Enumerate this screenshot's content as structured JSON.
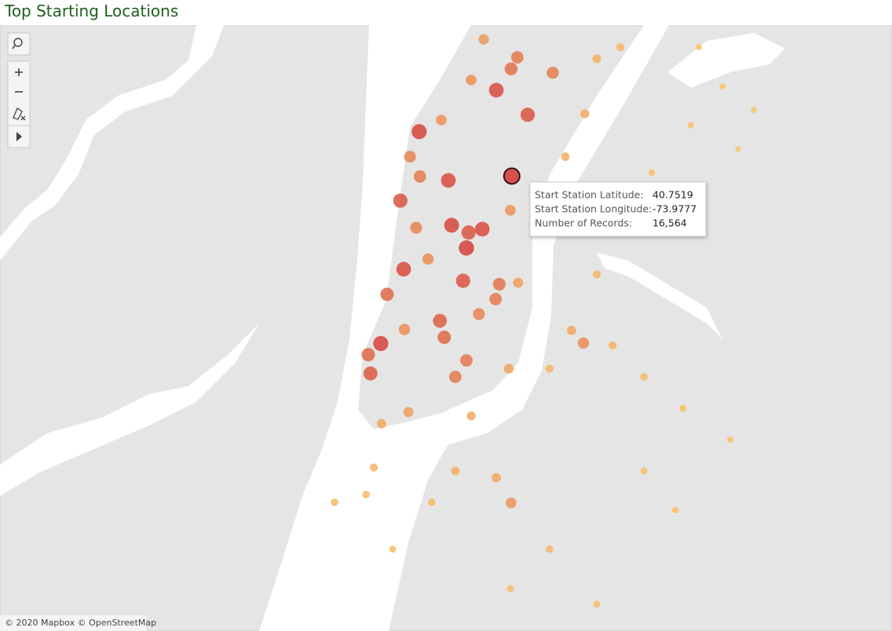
{
  "chart_data": {
    "type": "map",
    "title": "Top Starting Locations",
    "lat": [
      40.7519,
      40.7611,
      40.7697,
      40.7741,
      40.7765,
      40.7646,
      40.751,
      40.7468,
      40.7417,
      40.7402,
      40.7409,
      40.737,
      40.7326,
      40.7302,
      40.7274,
      40.7219,
      40.7185,
      40.7172,
      40.7149,
      40.711,
      40.7137,
      40.7295,
      40.7264,
      40.7518,
      40.7559,
      40.7733,
      40.7635,
      40.7718,
      40.7802,
      40.7412,
      40.7347,
      40.7201,
      40.703,
      40.7006,
      40.7448,
      40.7298,
      40.712,
      40.7559,
      40.7648,
      40.7762,
      40.7786,
      40.7173,
      40.7199,
      40.7315,
      40.7168,
      40.7103,
      40.7038,
      40.6973,
      40.7022,
      40.6842,
      40.6894,
      40.6908,
      40.6746,
      40.6632,
      40.6908,
      40.6746,
      40.6843,
      40.6843,
      40.6859,
      40.6915,
      40.7624,
      40.7705,
      40.7656,
      40.7526,
      40.7575,
      40.7786,
      40.712,
      40.6827,
      40.6664,
      40.7103,
      40.7233
    ],
    "lon": [
      -73.9777,
      -74.0028,
      -73.9819,
      -73.9779,
      -73.9762,
      -73.9734,
      -73.9949,
      -74.0079,
      -73.994,
      -73.9894,
      -73.9857,
      -73.99,
      -74.007,
      -73.9909,
      -74.0115,
      -73.9972,
      -73.996,
      -74.0132,
      -74.0166,
      -74.016,
      -73.99,
      -73.9811,
      -73.9821,
      -74.0026,
      -74.0053,
      -73.9666,
      -73.9968,
      -73.9887,
      -73.9853,
      -74.0036,
      -74.0004,
      -74.0068,
      -74.0057,
      -74.013,
      -73.9781,
      -73.976,
      -73.9785,
      -73.9632,
      -73.9579,
      -73.9547,
      -73.9483,
      -73.9583,
      -73.9615,
      -73.9547,
      -73.9504,
      -73.9419,
      -73.9313,
      -73.9185,
      -73.9887,
      -73.9779,
      -73.9819,
      -73.993,
      -73.9675,
      -73.9547,
      -73.9419,
      -74.01,
      -73.9994,
      -74.0257,
      -74.0172,
      -74.0151,
      -73.9292,
      -73.9206,
      -73.9121,
      -73.9398,
      -73.9164,
      -73.927,
      -73.9675,
      -73.9334,
      -73.9781,
      -73.993,
      -73.9866
    ],
    "values": [
      16564,
      15000,
      14000,
      10000,
      9000,
      13000,
      14000,
      13000,
      14500,
      13000,
      14000,
      15500,
      14000,
      13000,
      11000,
      12000,
      11000,
      15000,
      11000,
      12500,
      9000,
      9500,
      9000,
      9000,
      8000,
      8500,
      6000,
      6000,
      5500,
      8000,
      7000,
      7000,
      5000,
      4000,
      6000,
      5000,
      4500,
      3000,
      3500,
      3000,
      2500,
      7000,
      4000,
      2500,
      2500,
      2000,
      1500,
      1000,
      3500,
      6000,
      4000,
      3000,
      2000,
      1500,
      1500,
      1500,
      2000,
      2000,
      2000,
      2500,
      1000,
      1000,
      800,
      1200,
      800,
      900,
      2500,
      1200,
      1500,
      9000,
      8000
    ],
    "color_range": [
      "#f9c46b",
      "#d23a3a"
    ],
    "tooltip": {
      "rows": [
        {
          "label": "Start Station Latitude:",
          "value": 40.7519
        },
        {
          "label": "Start Station Longitude:",
          "value": -73.9777
        },
        {
          "label": "Number of Records:",
          "value": 16564,
          "value_label": "16,564"
        }
      ]
    },
    "attribution": "© 2020 Mapbox © OpenStreetMap"
  }
}
